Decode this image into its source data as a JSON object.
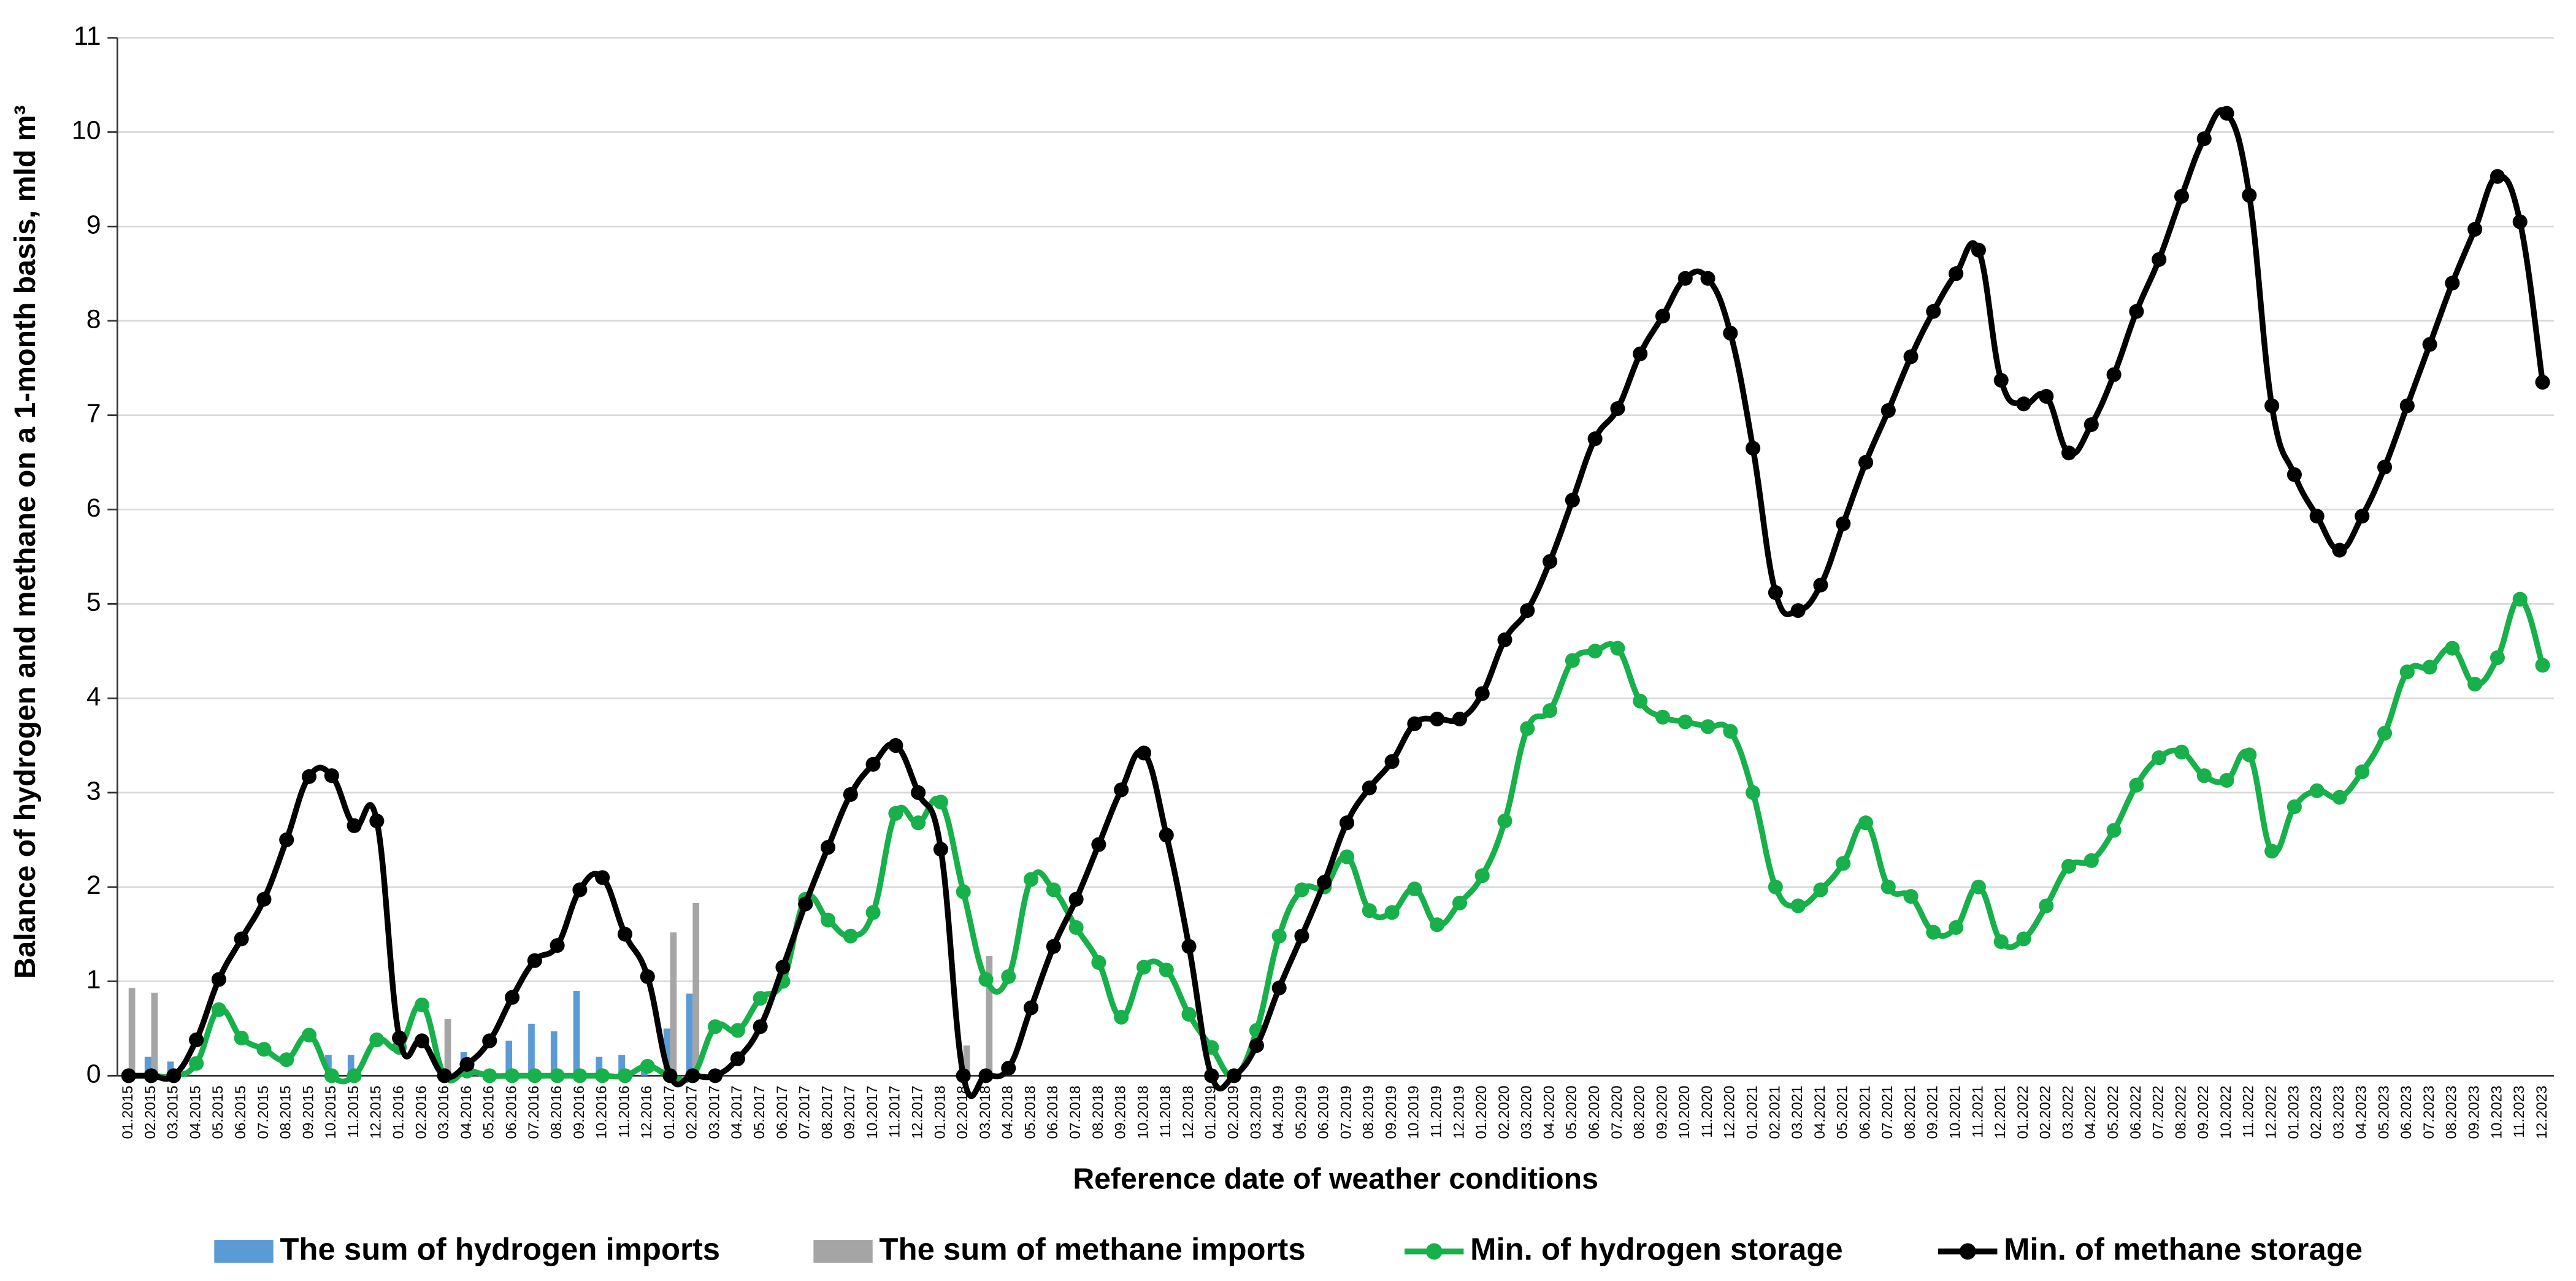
{
  "chart_data": {
    "type": "bar_line",
    "x_label": "Reference date of weather conditions",
    "y_label": "Balance of hydrogen and methane on a 1-month basis, mld m³",
    "categories": [
      "01.2015",
      "02.2015",
      "03.2015",
      "04.2015",
      "05.2015",
      "06.2015",
      "07.2015",
      "08.2015",
      "09.2015",
      "10.2015",
      "11.2015",
      "12.2015",
      "01.2016",
      "02.2016",
      "03.2016",
      "04.2016",
      "05.2016",
      "06.2016",
      "07.2016",
      "08.2016",
      "09.2016",
      "10.2016",
      "11.2016",
      "12.2016",
      "01.2017",
      "02.2017",
      "03.2017",
      "04.2017",
      "05.2017",
      "06.2017",
      "07.2017",
      "08.2017",
      "09.2017",
      "10.2017",
      "11.2017",
      "12.2017",
      "01.2018",
      "02.2018",
      "03.2018",
      "04.2018",
      "05.2018",
      "06.2018",
      "07.2018",
      "08.2018",
      "09.2018",
      "10.2018",
      "11.2018",
      "12.2018",
      "01.2019",
      "02.2019",
      "03.2019",
      "04.2019",
      "05.2019",
      "06.2019",
      "07.2019",
      "08.2019",
      "09.2019",
      "10.2019",
      "11.2019",
      "12.2019",
      "01.2020",
      "02.2020",
      "03.2020",
      "04.2020",
      "05.2020",
      "06.2020",
      "07.2020",
      "08.2020",
      "09.2020",
      "10.2020",
      "11.2020",
      "12.2020",
      "01.2021",
      "02.2021",
      "03.2021",
      "04.2021",
      "05.2021",
      "06.2021",
      "07.2021",
      "08.2021",
      "09.2021",
      "10.2021",
      "11.2021",
      "12.2021",
      "01.2022",
      "02.2022",
      "03.2022",
      "04.2022",
      "05.2022",
      "06.2022",
      "07.2022",
      "08.2022",
      "09.2022",
      "10.2022",
      "11.2022",
      "12.2022",
      "01.2023",
      "02.2023",
      "03.2023",
      "04.2023",
      "05.2023",
      "06.2023",
      "07.2023",
      "08.2023",
      "09.2023",
      "10.2023",
      "11.2023",
      "12.2023"
    ],
    "series": [
      {
        "name": "The sum of hydrogen imports",
        "kind": "bar",
        "color": "#5b9bd5",
        "values": [
          0,
          0.2,
          0.15,
          0,
          0,
          0,
          0,
          0,
          0,
          0.22,
          0.22,
          0,
          0,
          0,
          0,
          0.25,
          0,
          0.37,
          0.55,
          0.47,
          0.9,
          0.2,
          0.22,
          0.1,
          0.5,
          0.87,
          0,
          0,
          0,
          0,
          0,
          0,
          0,
          0,
          0,
          0,
          0,
          0,
          0,
          0,
          0,
          0,
          0,
          0,
          0,
          0,
          0,
          0,
          0,
          0,
          0,
          0,
          0,
          0,
          0,
          0,
          0,
          0,
          0,
          0,
          0,
          0,
          0,
          0,
          0,
          0,
          0,
          0,
          0,
          0,
          0,
          0,
          0,
          0,
          0,
          0,
          0,
          0,
          0,
          0,
          0,
          0,
          0,
          0,
          0,
          0,
          0,
          0,
          0,
          0,
          0,
          0,
          0,
          0,
          0,
          0,
          0,
          0,
          0,
          0,
          0,
          0,
          0,
          0,
          0,
          0,
          0,
          0
        ]
      },
      {
        "name": "The sum of methane imports",
        "kind": "bar",
        "color": "#a5a5a5",
        "values": [
          0.93,
          0.88,
          0,
          0,
          0,
          0,
          0,
          0,
          0,
          0,
          0,
          0,
          0,
          0,
          0.6,
          0,
          0,
          0,
          0,
          0,
          0,
          0,
          0,
          0,
          1.52,
          1.83,
          0,
          0,
          0,
          0,
          0,
          0,
          0,
          0,
          0,
          0,
          0,
          0.32,
          1.27,
          0,
          0,
          0,
          0,
          0,
          0,
          0,
          0,
          0,
          0,
          0,
          0,
          0,
          0,
          0,
          0,
          0,
          0,
          0,
          0,
          0,
          0,
          0,
          0,
          0,
          0,
          0,
          0,
          0,
          0,
          0,
          0,
          0,
          0,
          0,
          0,
          0,
          0,
          0,
          0,
          0,
          0,
          0,
          0,
          0,
          0,
          0,
          0,
          0,
          0,
          0,
          0,
          0,
          0,
          0,
          0,
          0,
          0,
          0,
          0,
          0,
          0,
          0,
          0,
          0,
          0,
          0,
          0,
          0
        ]
      },
      {
        "name": "Min. of hydrogen storage",
        "kind": "line",
        "color": "#17b04a",
        "values": [
          0,
          0,
          0,
          0.13,
          0.7,
          0.4,
          0.28,
          0.17,
          0.43,
          0,
          0,
          0.38,
          0.3,
          0.75,
          0,
          0.05,
          0,
          0,
          0,
          0,
          0,
          0,
          0,
          0.1,
          0,
          0,
          0.52,
          0.48,
          0.82,
          1.0,
          1.87,
          1.65,
          1.48,
          1.73,
          2.78,
          2.68,
          2.9,
          1.95,
          1.02,
          1.05,
          2.08,
          1.97,
          1.57,
          1.2,
          0.62,
          1.15,
          1.12,
          0.65,
          0.3,
          0,
          0.48,
          1.48,
          1.97,
          2.0,
          2.32,
          1.75,
          1.73,
          1.98,
          1.6,
          1.83,
          2.12,
          2.7,
          3.68,
          3.87,
          4.4,
          4.5,
          4.53,
          3.97,
          3.8,
          3.75,
          3.7,
          3.65,
          3.0,
          2.0,
          1.8,
          1.97,
          2.25,
          2.68,
          2.0,
          1.9,
          1.52,
          1.57,
          2.0,
          1.42,
          1.45,
          1.8,
          2.22,
          2.28,
          2.6,
          3.08,
          3.37,
          3.43,
          3.18,
          3.13,
          3.4,
          2.38,
          2.85,
          3.02,
          2.95,
          3.22,
          3.63,
          4.28,
          4.33,
          4.53,
          4.15,
          4.43,
          5.05,
          4.35
        ]
      },
      {
        "name": "Min. of methane storage",
        "kind": "line",
        "color": "#000000",
        "values": [
          0,
          0,
          0,
          0.38,
          1.02,
          1.45,
          1.87,
          2.5,
          3.17,
          3.18,
          2.65,
          2.7,
          0.4,
          0.37,
          0,
          0.12,
          0.37,
          0.83,
          1.22,
          1.38,
          1.97,
          2.1,
          1.5,
          1.05,
          0,
          0,
          0,
          0.18,
          0.52,
          1.15,
          1.82,
          2.42,
          2.98,
          3.3,
          3.5,
          3.0,
          2.4,
          0,
          0,
          0.08,
          0.72,
          1.37,
          1.87,
          2.45,
          3.03,
          3.42,
          2.55,
          1.37,
          0,
          0,
          0.32,
          0.93,
          1.48,
          2.05,
          2.68,
          3.05,
          3.33,
          3.73,
          3.78,
          3.78,
          4.05,
          4.62,
          4.93,
          5.45,
          6.1,
          6.75,
          7.07,
          7.65,
          8.05,
          8.45,
          8.45,
          7.87,
          6.65,
          5.12,
          4.93,
          5.2,
          5.85,
          6.5,
          7.05,
          7.62,
          8.1,
          8.5,
          8.75,
          7.37,
          7.12,
          7.2,
          6.6,
          6.9,
          7.43,
          8.1,
          8.65,
          9.32,
          9.93,
          10.2,
          9.33,
          7.1,
          6.37,
          5.93,
          5.57,
          5.93,
          6.45,
          7.1,
          7.75,
          8.4,
          8.97,
          9.53,
          9.05,
          7.35
        ]
      }
    ],
    "ylim": [
      0,
      11
    ],
    "yticks": [
      0,
      1,
      2,
      3,
      4,
      5,
      6,
      7,
      8,
      9,
      10,
      11
    ],
    "grid": true,
    "legend": "bottom"
  }
}
